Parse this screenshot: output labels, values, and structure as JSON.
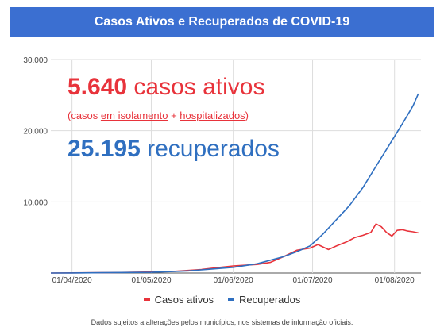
{
  "header": {
    "title": "Casos Ativos e Recuperados de COVID-19"
  },
  "overlay": {
    "active_value": "5.640",
    "active_label": "casos ativos",
    "active_sub_open": "(casos ",
    "active_sub_isolation": "em isolamento",
    "active_sub_plus": " + ",
    "active_sub_hospital": "hospitalizados",
    "active_sub_close": ")",
    "recovered_value": "25.195",
    "recovered_label": "recuperados"
  },
  "footnote": "Dados sujeitos a alterações pelos municípios, nos sistemas de informação oficiais.",
  "colors": {
    "active": "#e8333b",
    "recovered": "#2f6fc0",
    "header": "#3b6fd1"
  },
  "chart_data": {
    "type": "line",
    "title": "Casos Ativos e Recuperados de COVID-19",
    "xlabel": "",
    "ylabel": "",
    "x_ticks": [
      "01/04/2020",
      "01/05/2020",
      "01/06/2020",
      "01/07/2020",
      "01/08/2020"
    ],
    "y_ticks": [
      "10.000",
      "20.000",
      "30.000"
    ],
    "ylim": [
      0,
      30000
    ],
    "xlim": [
      "2020-03-24",
      "2020-08-11"
    ],
    "grid": true,
    "legend": "bottom",
    "series": [
      {
        "name": "Casos ativos",
        "color": "#e8333b",
        "points": [
          [
            "2020-03-24",
            0
          ],
          [
            "2020-04-01",
            20
          ],
          [
            "2020-04-15",
            60
          ],
          [
            "2020-05-01",
            150
          ],
          [
            "2020-05-10",
            250
          ],
          [
            "2020-05-20",
            500
          ],
          [
            "2020-05-27",
            800
          ],
          [
            "2020-06-01",
            1000
          ],
          [
            "2020-06-10",
            1200
          ],
          [
            "2020-06-15",
            1500
          ],
          [
            "2020-06-20",
            2300
          ],
          [
            "2020-06-25",
            3200
          ],
          [
            "2020-06-30",
            3500
          ],
          [
            "2020-07-03",
            4000
          ],
          [
            "2020-07-07",
            3300
          ],
          [
            "2020-07-10",
            3800
          ],
          [
            "2020-07-14",
            4400
          ],
          [
            "2020-07-17",
            5000
          ],
          [
            "2020-07-20",
            5300
          ],
          [
            "2020-07-23",
            5700
          ],
          [
            "2020-07-25",
            6900
          ],
          [
            "2020-07-27",
            6500
          ],
          [
            "2020-07-29",
            5700
          ],
          [
            "2020-07-31",
            5200
          ],
          [
            "2020-08-02",
            6000
          ],
          [
            "2020-08-04",
            6100
          ],
          [
            "2020-08-06",
            5900
          ],
          [
            "2020-08-08",
            5800
          ],
          [
            "2020-08-10",
            5640
          ]
        ]
      },
      {
        "name": "Recuperados",
        "color": "#2f6fc0",
        "points": [
          [
            "2020-03-24",
            0
          ],
          [
            "2020-04-01",
            10
          ],
          [
            "2020-05-01",
            100
          ],
          [
            "2020-05-15",
            300
          ],
          [
            "2020-06-01",
            800
          ],
          [
            "2020-06-10",
            1300
          ],
          [
            "2020-06-20",
            2300
          ],
          [
            "2020-06-25",
            3000
          ],
          [
            "2020-06-30",
            3800
          ],
          [
            "2020-07-05",
            5500
          ],
          [
            "2020-07-10",
            7500
          ],
          [
            "2020-07-15",
            9500
          ],
          [
            "2020-07-20",
            12000
          ],
          [
            "2020-07-25",
            15000
          ],
          [
            "2020-07-30",
            18000
          ],
          [
            "2020-08-04",
            21000
          ],
          [
            "2020-08-08",
            23500
          ],
          [
            "2020-08-10",
            25195
          ]
        ]
      }
    ]
  }
}
